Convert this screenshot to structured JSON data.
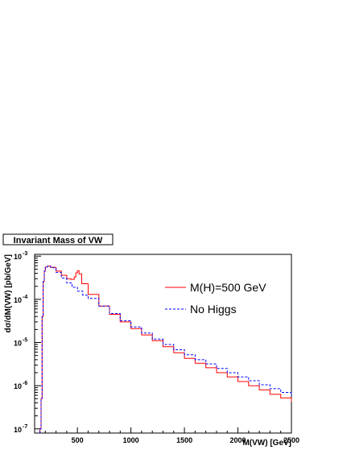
{
  "chart_data": {
    "type": "line",
    "title": "Invariant Mass of VW",
    "xlabel": "M(VW) [GeV]",
    "ylabel": "dσ/dM(VW) [pb/GeV]",
    "xlim": [
      100,
      2500
    ],
    "ylim": [
      8e-08,
      0.0011
    ],
    "log_y": true,
    "grid": false,
    "legend_position": "top-right",
    "x_ticks": [
      {
        "value": 500,
        "label": "500"
      },
      {
        "value": 1000,
        "label": "1000"
      },
      {
        "value": 1500,
        "label": "1500"
      },
      {
        "value": 2000,
        "label": "2000"
      },
      {
        "value": 2500,
        "label": "2500"
      }
    ],
    "y_ticks": [
      {
        "value": 1e-07,
        "base": "10",
        "exp": "-7"
      },
      {
        "value": 1e-06,
        "base": "10",
        "exp": "-6"
      },
      {
        "value": 1e-05,
        "base": "10",
        "exp": "-5"
      },
      {
        "value": 0.0001,
        "base": "10",
        "exp": "-4"
      },
      {
        "value": 0.001,
        "base": "10",
        "exp": "-3"
      }
    ],
    "series": [
      {
        "name": "M(H)=500 GeV",
        "color": "#ff0000",
        "style": "solid",
        "points": [
          [
            150,
            1e-07
          ],
          [
            160,
            5e-07
          ],
          [
            170,
            4e-05
          ],
          [
            180,
            0.00026
          ],
          [
            190,
            0.00045
          ],
          [
            200,
            0.00056
          ],
          [
            220,
            0.00059
          ],
          [
            250,
            0.00055
          ],
          [
            300,
            0.00045
          ],
          [
            350,
            0.00036
          ],
          [
            400,
            0.0003
          ],
          [
            440,
            0.00029
          ],
          [
            470,
            0.00033
          ],
          [
            485,
            0.00041
          ],
          [
            500,
            0.00046
          ],
          [
            515,
            0.00039
          ],
          [
            540,
            0.00023
          ],
          [
            600,
            0.00013
          ],
          [
            700,
            7e-05
          ],
          [
            800,
            4.5e-05
          ],
          [
            900,
            3e-05
          ],
          [
            1000,
            2.1e-05
          ],
          [
            1100,
            1.5e-05
          ],
          [
            1200,
            1.1e-05
          ],
          [
            1300,
            8e-06
          ],
          [
            1400,
            5.8e-06
          ],
          [
            1500,
            4.3e-06
          ],
          [
            1600,
            3.3e-06
          ],
          [
            1700,
            2.6e-06
          ],
          [
            1800,
            2e-06
          ],
          [
            1900,
            1.6e-06
          ],
          [
            2000,
            1.25e-06
          ],
          [
            2100,
            1e-06
          ],
          [
            2200,
            8e-07
          ],
          [
            2300,
            6.3e-07
          ],
          [
            2400,
            5.2e-07
          ],
          [
            2500,
            4.2e-07
          ]
        ]
      },
      {
        "name": "No Higgs",
        "color": "#0000ff",
        "style": "dashed",
        "points": [
          [
            150,
            1e-07
          ],
          [
            160,
            5e-07
          ],
          [
            170,
            4e-05
          ],
          [
            180,
            0.00026
          ],
          [
            190,
            0.00045
          ],
          [
            200,
            0.00056
          ],
          [
            220,
            0.00059
          ],
          [
            250,
            0.00054
          ],
          [
            300,
            0.00042
          ],
          [
            350,
            0.00031
          ],
          [
            400,
            0.00024
          ],
          [
            450,
            0.00019
          ],
          [
            500,
            0.000155
          ],
          [
            550,
            0.000125
          ],
          [
            600,
            0.000105
          ],
          [
            700,
            7e-05
          ],
          [
            800,
            4.7e-05
          ],
          [
            900,
            3.2e-05
          ],
          [
            1000,
            2.3e-05
          ],
          [
            1100,
            1.65e-05
          ],
          [
            1200,
            1.2e-05
          ],
          [
            1300,
            9e-06
          ],
          [
            1400,
            6.8e-06
          ],
          [
            1500,
            5.2e-06
          ],
          [
            1600,
            4e-06
          ],
          [
            1700,
            3.2e-06
          ],
          [
            1800,
            2.5e-06
          ],
          [
            1900,
            2e-06
          ],
          [
            2000,
            1.6e-06
          ],
          [
            2100,
            1.3e-06
          ],
          [
            2200,
            1.05e-06
          ],
          [
            2300,
            8.5e-07
          ],
          [
            2400,
            7e-07
          ],
          [
            2500,
            5.8e-07
          ]
        ]
      }
    ]
  }
}
